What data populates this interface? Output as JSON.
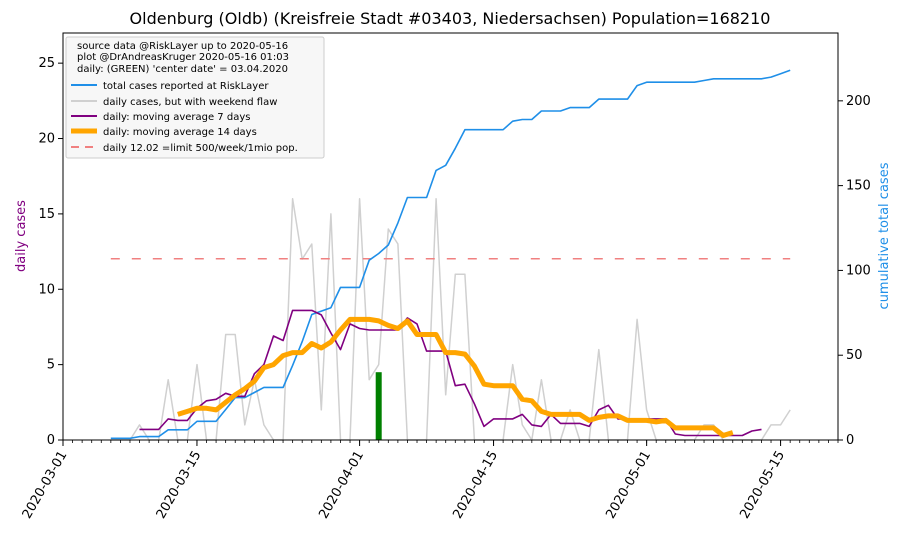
{
  "chart_data": {
    "type": "line",
    "title": "Oldenburg (Oldb) (Kreisfreie Stadt #03403, Niedersachsen) Population=168210",
    "ylabel_left": "daily cases",
    "ylabel_right": "cumulative total cases",
    "ylim_left": [
      0,
      27
    ],
    "ylim_right": [
      0,
      240
    ],
    "yticks_left": [
      0,
      5,
      10,
      15,
      20,
      25
    ],
    "yticks_right": [
      0,
      50,
      100,
      150,
      200
    ],
    "xlim": [
      "2020-03-01",
      "2020-05-21"
    ],
    "xticks": [
      "2020-03-01",
      "2020-03-15",
      "2020-04-01",
      "2020-04-15",
      "2020-05-01",
      "2020-05-15"
    ],
    "grid": false,
    "legend_position": "top-left",
    "legend_info_lines": [
      "source data @RiskLayer up to 2020-05-16",
      "plot @DrAndreasKruger 2020-05-16 01:03",
      "daily: (GREEN) 'center date' = 03.04.2020"
    ],
    "colors": {
      "total": "#1f8fe8",
      "daily": "#d0d0d0",
      "ma7": "#800080",
      "ma14": "#ffa500",
      "limit": "#f08080",
      "center": "#008000",
      "left_axis_label": "#800080",
      "right_axis_label": "#1f8fe8"
    },
    "series": [
      {
        "name": "total cases reported at RiskLayer",
        "axis": "right",
        "x": [
          "2020-03-06",
          "2020-03-07",
          "2020-03-08",
          "2020-03-09",
          "2020-03-10",
          "2020-03-11",
          "2020-03-12",
          "2020-03-13",
          "2020-03-14",
          "2020-03-15",
          "2020-03-16",
          "2020-03-17",
          "2020-03-18",
          "2020-03-19",
          "2020-03-20",
          "2020-03-21",
          "2020-03-22",
          "2020-03-23",
          "2020-03-24",
          "2020-03-25",
          "2020-03-26",
          "2020-03-27",
          "2020-03-28",
          "2020-03-29",
          "2020-03-30",
          "2020-03-31",
          "2020-04-01",
          "2020-04-02",
          "2020-04-03",
          "2020-04-04",
          "2020-04-05",
          "2020-04-06",
          "2020-04-07",
          "2020-04-08",
          "2020-04-09",
          "2020-04-10",
          "2020-04-11",
          "2020-04-12",
          "2020-04-13",
          "2020-04-14",
          "2020-04-15",
          "2020-04-16",
          "2020-04-17",
          "2020-04-18",
          "2020-04-19",
          "2020-04-20",
          "2020-04-21",
          "2020-04-22",
          "2020-04-23",
          "2020-04-24",
          "2020-04-25",
          "2020-04-26",
          "2020-04-27",
          "2020-04-28",
          "2020-04-29",
          "2020-04-30",
          "2020-05-01",
          "2020-05-02",
          "2020-05-03",
          "2020-05-04",
          "2020-05-05",
          "2020-05-06",
          "2020-05-07",
          "2020-05-08",
          "2020-05-09",
          "2020-05-10",
          "2020-05-11",
          "2020-05-12",
          "2020-05-13",
          "2020-05-14",
          "2020-05-15",
          "2020-05-16"
        ],
        "values": [
          1,
          1,
          1,
          2,
          2,
          2,
          6,
          6,
          6,
          11,
          11,
          11,
          18,
          25,
          25,
          28,
          31,
          31,
          31,
          44,
          58,
          74,
          76,
          78,
          90,
          90,
          90,
          106,
          110,
          115,
          128,
          143,
          143,
          143,
          159,
          162,
          172,
          183,
          183,
          183,
          183,
          183,
          188,
          189,
          189,
          194,
          194,
          194,
          196,
          196,
          196,
          201,
          201,
          201,
          201,
          209,
          211,
          211,
          211,
          211,
          211,
          211,
          212,
          213,
          213,
          213,
          213,
          213,
          213,
          214,
          216,
          218
        ]
      },
      {
        "name": "daily cases, but with weekend flaw",
        "axis": "left",
        "x": [
          "2020-03-06",
          "2020-03-07",
          "2020-03-08",
          "2020-03-09",
          "2020-03-10",
          "2020-03-11",
          "2020-03-12",
          "2020-03-13",
          "2020-03-14",
          "2020-03-15",
          "2020-03-16",
          "2020-03-17",
          "2020-03-18",
          "2020-03-19",
          "2020-03-20",
          "2020-03-21",
          "2020-03-22",
          "2020-03-23",
          "2020-03-24",
          "2020-03-25",
          "2020-03-26",
          "2020-03-27",
          "2020-03-28",
          "2020-03-29",
          "2020-03-30",
          "2020-03-31",
          "2020-04-01",
          "2020-04-02",
          "2020-04-03",
          "2020-04-04",
          "2020-04-05",
          "2020-04-06",
          "2020-04-07",
          "2020-04-08",
          "2020-04-09",
          "2020-04-10",
          "2020-04-11",
          "2020-04-12",
          "2020-04-13",
          "2020-04-14",
          "2020-04-15",
          "2020-04-16",
          "2020-04-17",
          "2020-04-18",
          "2020-04-19",
          "2020-04-20",
          "2020-04-21",
          "2020-04-22",
          "2020-04-23",
          "2020-04-24",
          "2020-04-25",
          "2020-04-26",
          "2020-04-27",
          "2020-04-28",
          "2020-04-29",
          "2020-04-30",
          "2020-05-01",
          "2020-05-02",
          "2020-05-03",
          "2020-05-04",
          "2020-05-05",
          "2020-05-06",
          "2020-05-07",
          "2020-05-08",
          "2020-05-09",
          "2020-05-10",
          "2020-05-11",
          "2020-05-12",
          "2020-05-13",
          "2020-05-14",
          "2020-05-15",
          "2020-05-16"
        ],
        "values": [
          0,
          0,
          0,
          1,
          0,
          0,
          4,
          0,
          0,
          5,
          0,
          0,
          7,
          7,
          1,
          4,
          1,
          0,
          0,
          16,
          12,
          13,
          2,
          15,
          0,
          0,
          16,
          4,
          5,
          14,
          13,
          0,
          0,
          0,
          16,
          3,
          11,
          11,
          0,
          0,
          0,
          0,
          5,
          1,
          0,
          4,
          0,
          0,
          2,
          0,
          0,
          6,
          0,
          0,
          0,
          8,
          2,
          0,
          0,
          0,
          0,
          0,
          1,
          1,
          0,
          0,
          0,
          0,
          0,
          1,
          1,
          2
        ]
      },
      {
        "name": "daily: moving average 7 days",
        "axis": "left",
        "x": [
          "2020-03-09",
          "2020-03-10",
          "2020-03-11",
          "2020-03-12",
          "2020-03-13",
          "2020-03-14",
          "2020-03-15",
          "2020-03-16",
          "2020-03-17",
          "2020-03-18",
          "2020-03-19",
          "2020-03-20",
          "2020-03-21",
          "2020-03-22",
          "2020-03-23",
          "2020-03-24",
          "2020-03-25",
          "2020-03-26",
          "2020-03-27",
          "2020-03-28",
          "2020-03-29",
          "2020-03-30",
          "2020-03-31",
          "2020-04-01",
          "2020-04-02",
          "2020-04-03",
          "2020-04-04",
          "2020-04-05",
          "2020-04-06",
          "2020-04-07",
          "2020-04-08",
          "2020-04-09",
          "2020-04-10",
          "2020-04-11",
          "2020-04-12",
          "2020-04-13",
          "2020-04-14",
          "2020-04-15",
          "2020-04-16",
          "2020-04-17",
          "2020-04-18",
          "2020-04-19",
          "2020-04-20",
          "2020-04-21",
          "2020-04-22",
          "2020-04-23",
          "2020-04-24",
          "2020-04-25",
          "2020-04-26",
          "2020-04-27",
          "2020-04-28",
          "2020-04-29",
          "2020-04-30",
          "2020-05-01",
          "2020-05-02",
          "2020-05-03",
          "2020-05-04",
          "2020-05-05",
          "2020-05-06",
          "2020-05-07",
          "2020-05-08",
          "2020-05-09",
          "2020-05-10",
          "2020-05-11",
          "2020-05-12",
          "2020-05-13"
        ],
        "values": [
          0.7,
          0.7,
          0.7,
          1.4,
          1.3,
          1.3,
          2.1,
          2.6,
          2.7,
          3.1,
          2.9,
          2.9,
          4.4,
          5.0,
          6.9,
          6.6,
          8.6,
          8.6,
          8.6,
          8.3,
          7.1,
          6.0,
          7.7,
          7.4,
          7.3,
          7.3,
          7.3,
          7.3,
          8.1,
          7.7,
          5.9,
          5.9,
          5.9,
          3.6,
          3.7,
          2.4,
          0.9,
          1.4,
          1.4,
          1.4,
          1.7,
          1.0,
          0.9,
          1.7,
          1.1,
          1.1,
          1.1,
          0.9,
          2.0,
          2.3,
          1.4,
          1.4,
          1.4,
          1.4,
          1.4,
          1.4,
          0.4,
          0.3,
          0.3,
          0.3,
          0.3,
          0.3,
          0.3,
          0.3,
          0.6,
          0.7
        ]
      },
      {
        "name": "daily: moving average 14 days",
        "axis": "left",
        "x": [
          "2020-03-13",
          "2020-03-14",
          "2020-03-15",
          "2020-03-16",
          "2020-03-17",
          "2020-03-18",
          "2020-03-19",
          "2020-03-20",
          "2020-03-21",
          "2020-03-22",
          "2020-03-23",
          "2020-03-24",
          "2020-03-25",
          "2020-03-26",
          "2020-03-27",
          "2020-03-28",
          "2020-03-29",
          "2020-03-30",
          "2020-03-31",
          "2020-04-01",
          "2020-04-02",
          "2020-04-03",
          "2020-04-04",
          "2020-04-05",
          "2020-04-06",
          "2020-04-07",
          "2020-04-08",
          "2020-04-09",
          "2020-04-10",
          "2020-04-11",
          "2020-04-12",
          "2020-04-13",
          "2020-04-14",
          "2020-04-15",
          "2020-04-16",
          "2020-04-17",
          "2020-04-18",
          "2020-04-19",
          "2020-04-20",
          "2020-04-21",
          "2020-04-22",
          "2020-04-23",
          "2020-04-24",
          "2020-04-25",
          "2020-04-26",
          "2020-04-27",
          "2020-04-28",
          "2020-04-29",
          "2020-04-30",
          "2020-05-01",
          "2020-05-02",
          "2020-05-03",
          "2020-05-04",
          "2020-05-05",
          "2020-05-06",
          "2020-05-07",
          "2020-05-08",
          "2020-05-09",
          "2020-05-10"
        ],
        "values": [
          1.7,
          1.9,
          2.1,
          2.1,
          2.0,
          2.5,
          3.0,
          3.4,
          3.9,
          4.8,
          5.0,
          5.6,
          5.8,
          5.8,
          6.4,
          6.1,
          6.5,
          7.3,
          8.0,
          8.0,
          8.0,
          7.9,
          7.6,
          7.4,
          7.9,
          7.0,
          7.0,
          7.0,
          5.8,
          5.8,
          5.7,
          4.9,
          3.7,
          3.6,
          3.6,
          3.6,
          2.7,
          2.6,
          1.9,
          1.7,
          1.7,
          1.7,
          1.7,
          1.3,
          1.5,
          1.6,
          1.6,
          1.3,
          1.3,
          1.3,
          1.2,
          1.3,
          0.8,
          0.8,
          0.8,
          0.8,
          0.8,
          0.3,
          0.5
        ]
      },
      {
        "name": "daily 12.02 =limit 500/week/1mio pop.",
        "axis": "left",
        "x": [
          "2020-03-06",
          "2020-05-16"
        ],
        "values": [
          12.02,
          12.02
        ]
      }
    ],
    "center_bar": {
      "x": "2020-04-03",
      "value": 4.5
    }
  }
}
